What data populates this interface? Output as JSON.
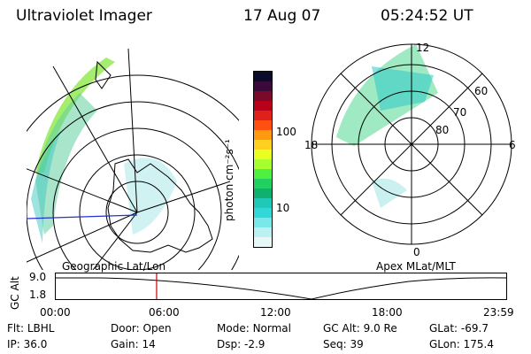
{
  "header": {
    "instrument": "Ultraviolet Imager",
    "date": "17 Aug 07",
    "time": "05:24:52 UT"
  },
  "colorbar": {
    "label": "photon cm⁻²s⁻¹",
    "ticks": [
      "100",
      "10"
    ],
    "colors": [
      "#0a0a2a",
      "#3a0a3a",
      "#7a0a2a",
      "#b8001a",
      "#e0201a",
      "#ff5010",
      "#ff9a10",
      "#ffd020",
      "#e8ff20",
      "#a8ff30",
      "#50f040",
      "#20d060",
      "#10b070",
      "#20c8b8",
      "#30d8d8",
      "#7ae8e8",
      "#bdf0f0",
      "#e8f8f8"
    ]
  },
  "mlt_plot": {
    "labels": [
      "12",
      "60",
      "70",
      "80",
      "18",
      "6",
      "0"
    ]
  },
  "timeline": {
    "left_label": "Geographic Lat/Lon",
    "right_label": "Apex MLat/MLT",
    "axis_label": "GC Alt",
    "y_ticks": [
      "9.0",
      "1.8"
    ],
    "x_ticks": [
      "00:00",
      "06:00",
      "12:00",
      "18:00",
      "23:59"
    ],
    "marker_time_hours": 5.41
  },
  "footer": {
    "row1": [
      {
        "label": "Flt:",
        "value": "LBHL"
      },
      {
        "label": "Door:",
        "value": "Open"
      },
      {
        "label": "Mode:",
        "value": "Normal"
      },
      {
        "label": "GC Alt:",
        "value": "9.0 Re"
      },
      {
        "label": "GLat:",
        "value": "-69.7"
      }
    ],
    "row2": [
      {
        "label": "IP:",
        "value": "36.0"
      },
      {
        "label": "Gain:",
        "value": "14"
      },
      {
        "label": "Dsp:",
        "value": "-2.9"
      },
      {
        "label": "Seq:",
        "value": "39"
      },
      {
        "label": "GLon:",
        "value": "175.4"
      }
    ]
  }
}
